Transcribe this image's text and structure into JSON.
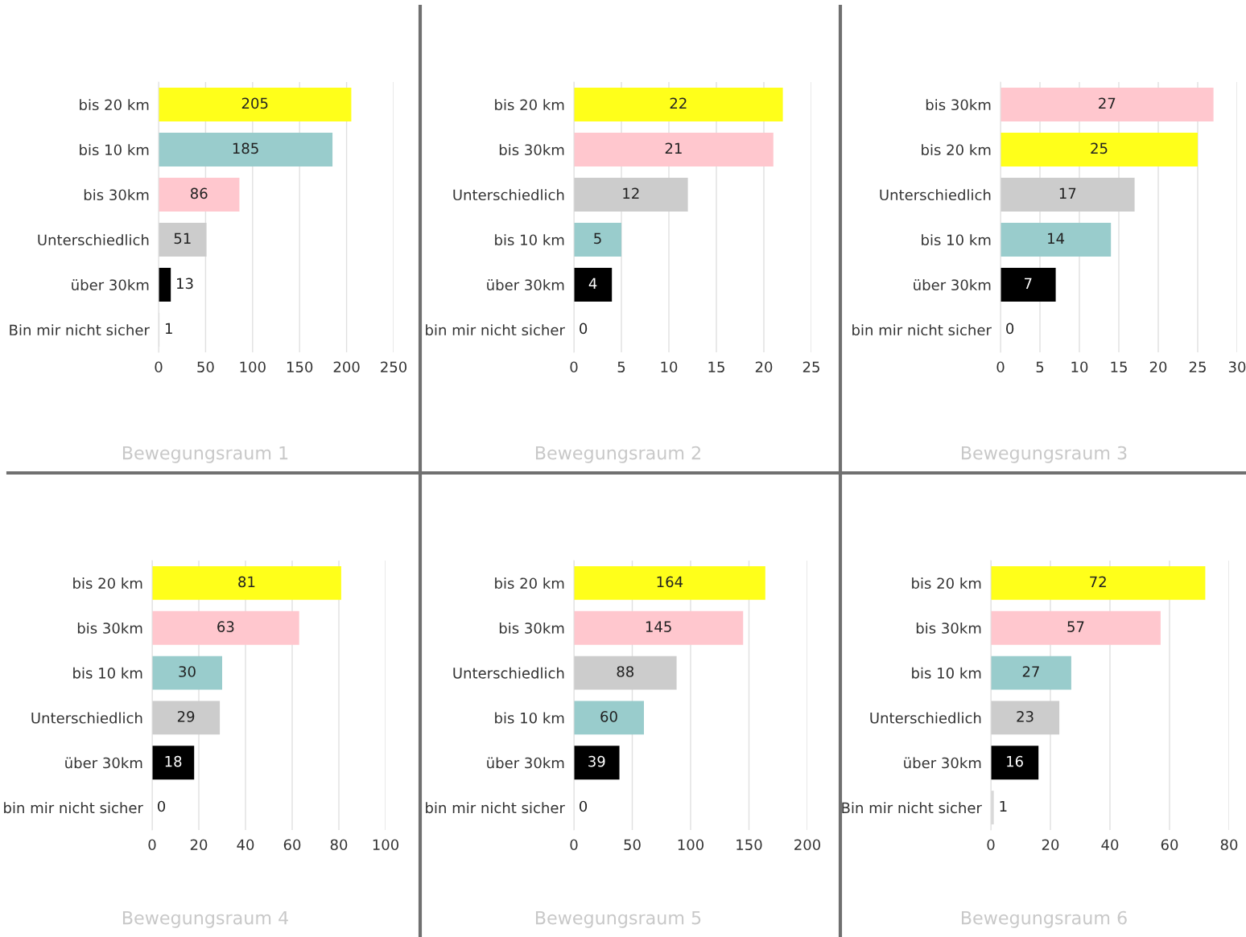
{
  "chart_data": [
    {
      "type": "bar",
      "orientation": "horizontal",
      "title": "Bewegungsraum 1",
      "categories": [
        "bis 20 km",
        "bis 10 km",
        "bis 30km",
        "Unterschiedlich",
        "über 30km",
        "Bin mir nicht sicher"
      ],
      "values": [
        205,
        185,
        86,
        51,
        13,
        1
      ],
      "colors": [
        "#ffff1a",
        "#99cccc",
        "#ffc7ce",
        "#cccccc",
        "#000000",
        "#d9d9d9"
      ],
      "xlim": [
        0,
        250
      ],
      "xticks": [
        0,
        50,
        100,
        150,
        200,
        250
      ],
      "grid": "x",
      "data_labels": true
    },
    {
      "type": "bar",
      "orientation": "horizontal",
      "title": "Bewegungsraum 2",
      "categories": [
        "bis 20 km",
        "bis 30km",
        "Unterschiedlich",
        "bis 10 km",
        "über 30km",
        "bin mir nicht sicher"
      ],
      "values": [
        22,
        21,
        12,
        5,
        4,
        0
      ],
      "colors": [
        "#ffff1a",
        "#ffc7ce",
        "#cccccc",
        "#99cccc",
        "#000000",
        "#d9d9d9"
      ],
      "xlim": [
        0,
        25
      ],
      "xticks": [
        0,
        5,
        10,
        15,
        20,
        25
      ],
      "grid": "x",
      "data_labels": true
    },
    {
      "type": "bar",
      "orientation": "horizontal",
      "title": "Bewegungsraum 3",
      "categories": [
        "bis 30km",
        "bis 20 km",
        "Unterschiedlich",
        "bis 10 km",
        "über 30km",
        "bin mir nicht sicher"
      ],
      "values": [
        27,
        25,
        17,
        14,
        7,
        0
      ],
      "colors": [
        "#ffc7ce",
        "#ffff1a",
        "#cccccc",
        "#99cccc",
        "#000000",
        "#d9d9d9"
      ],
      "xlim": [
        0,
        30
      ],
      "xticks": [
        0,
        5,
        10,
        15,
        20,
        25,
        30
      ],
      "grid": "x",
      "data_labels": true
    },
    {
      "type": "bar",
      "orientation": "horizontal",
      "title": "Bewegungsraum 4",
      "categories": [
        "bis 20 km",
        "bis 30km",
        "bis 10 km",
        "Unterschiedlich",
        "über 30km",
        "bin mir nicht sicher"
      ],
      "values": [
        81,
        63,
        30,
        29,
        18,
        0
      ],
      "colors": [
        "#ffff1a",
        "#ffc7ce",
        "#99cccc",
        "#cccccc",
        "#000000",
        "#d9d9d9"
      ],
      "xlim": [
        0,
        100
      ],
      "xticks": [
        0,
        20,
        40,
        60,
        80,
        100
      ],
      "grid": "x",
      "data_labels": true
    },
    {
      "type": "bar",
      "orientation": "horizontal",
      "title": "Bewegungsraum 5",
      "categories": [
        "bis 20 km",
        "bis 30km",
        "Unterschiedlich",
        "bis 10 km",
        "über 30km",
        "bin mir nicht sicher"
      ],
      "values": [
        164,
        145,
        88,
        60,
        39,
        0
      ],
      "colors": [
        "#ffff1a",
        "#ffc7ce",
        "#cccccc",
        "#99cccc",
        "#000000",
        "#d9d9d9"
      ],
      "xlim": [
        0,
        200
      ],
      "xticks": [
        0,
        50,
        100,
        150,
        200
      ],
      "grid": "x",
      "data_labels": true
    },
    {
      "type": "bar",
      "orientation": "horizontal",
      "title": "Bewegungsraum 6",
      "categories": [
        "bis 20 km",
        "bis 30km",
        "bis 10 km",
        "Unterschiedlich",
        "über 30km",
        "Bin mir nicht sicher"
      ],
      "values": [
        72,
        57,
        27,
        23,
        16,
        1
      ],
      "colors": [
        "#ffff1a",
        "#ffc7ce",
        "#99cccc",
        "#cccccc",
        "#000000",
        "#d9d9d9"
      ],
      "xlim": [
        0,
        80
      ],
      "xticks": [
        0,
        20,
        40,
        60,
        80
      ],
      "grid": "x",
      "data_labels": true
    }
  ]
}
